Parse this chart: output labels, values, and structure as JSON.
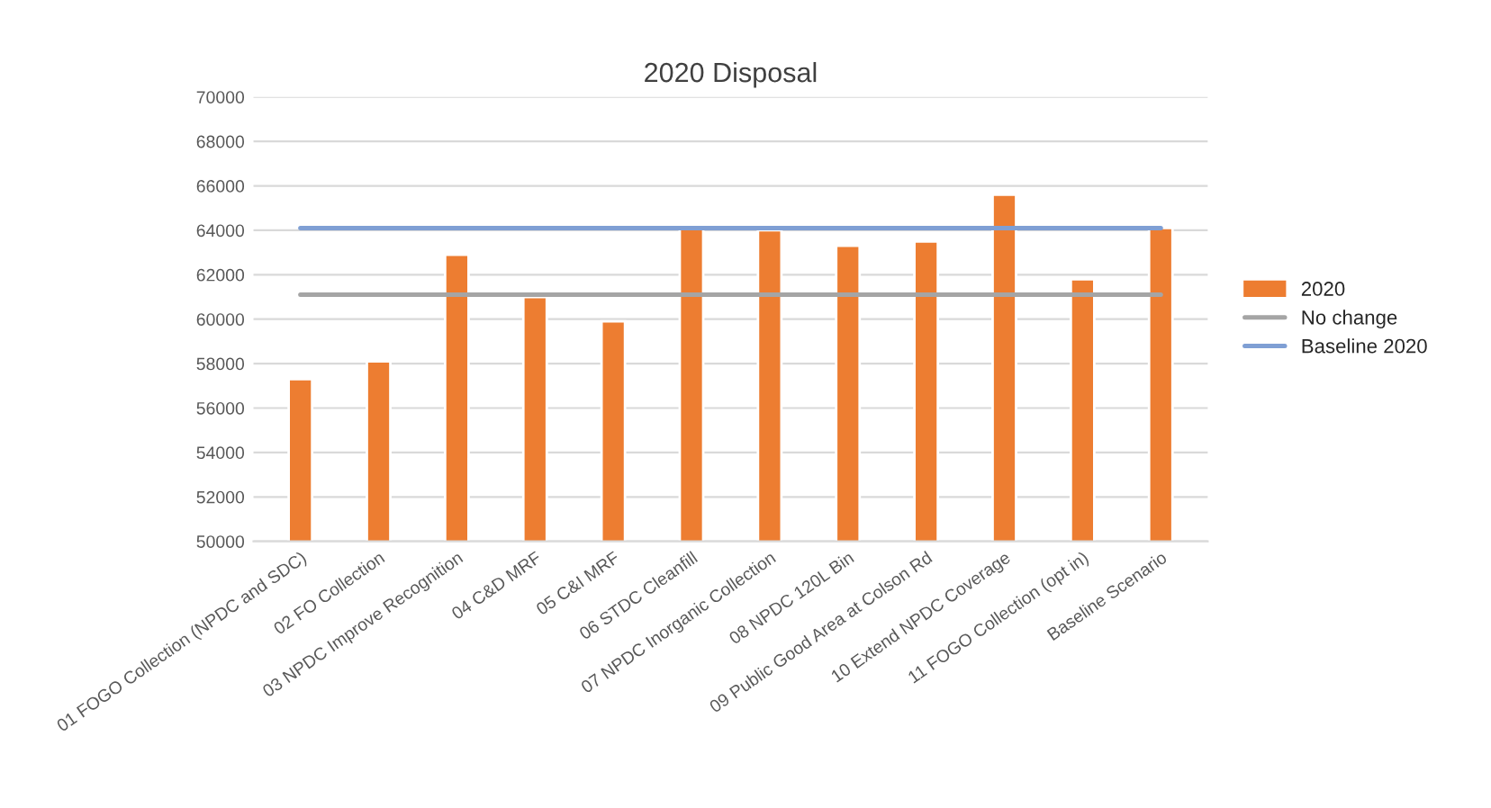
{
  "chart_data": {
    "type": "bar",
    "title": "2020 Disposal",
    "categories": [
      "01 FOGO Collection (NPDC and SDC)",
      "02 FO Collection",
      "03 NPDC Improve Recognition",
      "04 C&D MRF",
      "05 C&I MRF",
      "06 STDC Cleanfill",
      "07 NPDC Inorganic Collection",
      "08 NPDC 120L Bin",
      "09 Public Good Area at Colson Rd",
      "10 Extend NPDC Coverage",
      "11 FOGO Collection (opt in)",
      "Baseline Scenario"
    ],
    "series": [
      {
        "name": "2020",
        "color": "#ed7d31",
        "values": [
          57300,
          58100,
          62900,
          61000,
          59900,
          64100,
          64000,
          63300,
          63500,
          65600,
          61800,
          64100
        ]
      },
      {
        "name": "No change",
        "type": "line",
        "color": "#a5a5a5",
        "values": [
          61100,
          61100,
          61100,
          61100,
          61100,
          61100,
          61100,
          61100,
          61100,
          61100,
          61100,
          61100
        ]
      },
      {
        "name": "Baseline 2020",
        "type": "line",
        "color": "#7f9fd4",
        "values": [
          64100,
          64100,
          64100,
          64100,
          64100,
          64100,
          64100,
          64100,
          64100,
          64100,
          64100,
          64100
        ]
      }
    ],
    "ylim": [
      50000,
      70000
    ],
    "yticks": [
      50000,
      52000,
      54000,
      56000,
      58000,
      60000,
      62000,
      64000,
      66000,
      68000,
      70000
    ],
    "grid": "y",
    "legend": "right"
  }
}
